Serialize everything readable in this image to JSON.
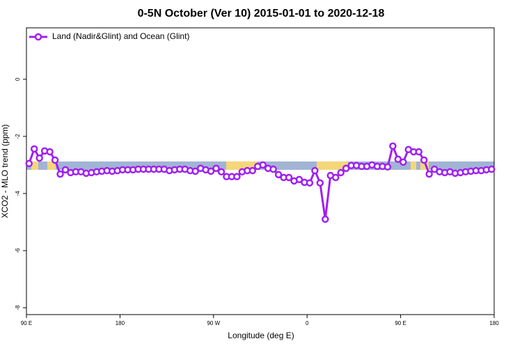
{
  "chart_data": {
    "type": "line",
    "title": "0-5N October (Ver 10)   2015-01-01 to 2020-12-18",
    "xlabel": "Longitude (deg E)",
    "ylabel": "XCO2 - MLO trend (ppm)",
    "x": [
      92.5,
      97.5,
      102.5,
      107.5,
      112.5,
      117.5,
      122.5,
      127.5,
      132.5,
      137.5,
      142.5,
      147.5,
      152.5,
      157.5,
      162.5,
      167.5,
      172.5,
      177.5,
      182.5,
      187.5,
      192.5,
      197.5,
      202.5,
      207.5,
      212.5,
      217.5,
      222.5,
      227.5,
      232.5,
      237.5,
      242.5,
      247.5,
      252.5,
      257.5,
      262.5,
      267.5,
      272.5,
      277.5,
      282.5,
      287.5,
      292.5,
      297.5,
      302.5,
      307.5,
      312.5,
      317.5,
      322.5,
      327.5,
      332.5,
      337.5,
      342.5,
      347.5,
      352.5,
      357.5,
      362.5,
      367.5,
      372.5,
      377.5,
      382.5,
      387.5,
      392.5,
      397.5,
      402.5,
      407.5,
      412.5,
      417.5,
      422.5,
      427.5,
      432.5,
      437.5,
      442.5,
      447.5,
      452.5,
      457.5,
      462.5,
      467.5,
      472.5,
      477.5,
      482.5,
      487.5,
      492.5,
      497.5,
      502.5,
      507.5,
      512.5,
      517.5,
      522.5,
      527.5,
      532.5,
      537.5
    ],
    "series": [
      {
        "name": "Land (Nadir&Glint) and Ocean (Glint)",
        "color": "#a020f0",
        "values": [
          -2.95,
          -2.44,
          -2.76,
          -2.51,
          -2.54,
          -2.83,
          -3.32,
          -3.17,
          -3.27,
          -3.24,
          -3.24,
          -3.29,
          -3.27,
          -3.24,
          -3.22,
          -3.2,
          -3.22,
          -3.2,
          -3.17,
          -3.17,
          -3.17,
          -3.15,
          -3.15,
          -3.15,
          -3.15,
          -3.15,
          -3.15,
          -3.2,
          -3.17,
          -3.15,
          -3.15,
          -3.2,
          -3.22,
          -3.12,
          -3.17,
          -3.22,
          -3.12,
          -3.24,
          -3.41,
          -3.41,
          -3.41,
          -3.24,
          -3.2,
          -3.2,
          -3.05,
          -3.0,
          -3.12,
          -3.15,
          -3.34,
          -3.44,
          -3.44,
          -3.56,
          -3.51,
          -3.61,
          -3.63,
          -3.2,
          -3.63,
          -4.9,
          -3.37,
          -3.44,
          -3.27,
          -3.12,
          -3.02,
          -3.02,
          -3.05,
          -3.05,
          -3.0,
          -3.05,
          -3.05,
          -3.07,
          -2.34,
          -2.8,
          -2.9,
          -2.46,
          -2.54,
          -2.54,
          -2.83,
          -3.32,
          -3.15,
          -3.24,
          -3.27,
          -3.24,
          -3.29,
          -3.27,
          -3.24,
          -3.22,
          -3.2,
          -3.2,
          -3.17,
          -3.15
        ]
      }
    ],
    "xlim": [
      90,
      540
    ],
    "xticks": [
      {
        "value": 90,
        "label": "90 E"
      },
      {
        "value": 180,
        "label": "180"
      },
      {
        "value": 270,
        "label": "90 W"
      },
      {
        "value": 360,
        "label": "0"
      },
      {
        "value": 450,
        "label": "90 E"
      },
      {
        "value": 540,
        "label": "180"
      }
    ],
    "ylim": [
      -8.24,
      1.8
    ],
    "yticks": [
      0,
      -2,
      -4,
      -6,
      -8
    ],
    "legend": "top-left"
  }
}
